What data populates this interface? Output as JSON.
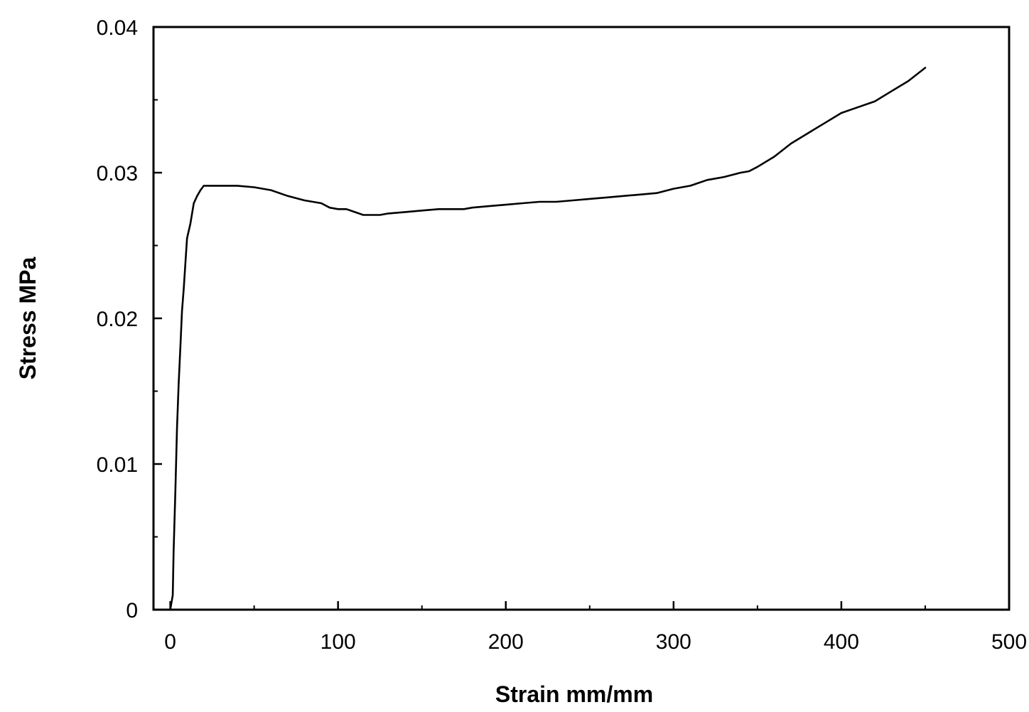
{
  "chart_data": {
    "type": "line",
    "title": "",
    "xlabel": "Strain mm/mm",
    "ylabel": "Stress MPa",
    "xlim": [
      -10,
      500
    ],
    "ylim": [
      0,
      0.04
    ],
    "x_ticks": [
      0,
      100,
      200,
      300,
      400,
      500
    ],
    "y_ticks": [
      0,
      0.01,
      0.02,
      0.03,
      0.04
    ],
    "x_tick_labels": [
      "0",
      "100",
      "200",
      "300",
      "400",
      "500"
    ],
    "y_tick_labels": [
      "0",
      "0.01",
      "0.02",
      "0.03",
      "0.04"
    ],
    "grid": false,
    "legend": "none",
    "line_color": "#000000",
    "series": [
      {
        "x": [
          0,
          1.5,
          2,
          3,
          4,
          5,
          6,
          7,
          8,
          9,
          10,
          12,
          14,
          16,
          18,
          20,
          25,
          30,
          40,
          50,
          60,
          70,
          80,
          90,
          95,
          100,
          105,
          110,
          115,
          120,
          125,
          130,
          140,
          150,
          160,
          170,
          175,
          180,
          190,
          200,
          210,
          220,
          230,
          240,
          250,
          260,
          270,
          280,
          290,
          300,
          310,
          320,
          330,
          340,
          345,
          350,
          360,
          370,
          380,
          390,
          400,
          410,
          420,
          430,
          440,
          450
        ],
        "y": [
          0,
          0.001,
          0.004,
          0.008,
          0.0125,
          0.0155,
          0.018,
          0.0205,
          0.022,
          0.0238,
          0.0255,
          0.0265,
          0.0279,
          0.0284,
          0.0288,
          0.0291,
          0.0291,
          0.0291,
          0.0291,
          0.029,
          0.0288,
          0.0284,
          0.0281,
          0.0279,
          0.0276,
          0.0275,
          0.0275,
          0.0273,
          0.0271,
          0.0271,
          0.0271,
          0.0272,
          0.0273,
          0.0274,
          0.0275,
          0.0275,
          0.0275,
          0.0276,
          0.0277,
          0.0278,
          0.0279,
          0.028,
          0.028,
          0.0281,
          0.0282,
          0.0283,
          0.0284,
          0.0285,
          0.0286,
          0.0289,
          0.0291,
          0.0295,
          0.0297,
          0.03,
          0.0301,
          0.0304,
          0.0311,
          0.032,
          0.0327,
          0.0334,
          0.0341,
          0.0345,
          0.0349,
          0.0356,
          0.0363,
          0.0372
        ]
      }
    ]
  }
}
